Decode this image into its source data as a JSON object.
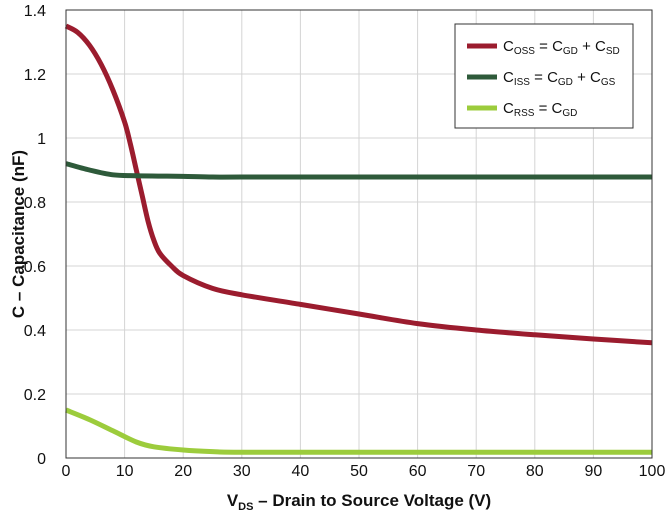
{
  "chart_data": {
    "type": "line",
    "xlabel": {
      "main": "V",
      "sub": "DS",
      "rest": " – Drain to Source Voltage (V)"
    },
    "ylabel": "C – Capacitance (nF)",
    "xlim": [
      0,
      100
    ],
    "ylim": [
      0,
      1.4
    ],
    "x_ticks": [
      0,
      10,
      20,
      30,
      40,
      50,
      60,
      70,
      80,
      90,
      100
    ],
    "y_ticks": [
      0,
      0.2,
      0.4,
      0.6,
      0.8,
      1,
      1.2,
      1.4
    ],
    "x_tick_labels": [
      "0",
      "10",
      "20",
      "30",
      "40",
      "50",
      "60",
      "70",
      "80",
      "90",
      "100"
    ],
    "y_tick_labels": [
      "0",
      "0.2",
      "0.4",
      "0.6",
      "0.8",
      "1",
      "1.2",
      "1.4"
    ],
    "grid": true,
    "legend_position": "top-right",
    "series": [
      {
        "name": "COSS = CGD + CSD",
        "color": "#9b1c2e",
        "legend": [
          [
            "C",
            ""
          ],
          [
            "OSS",
            "sub"
          ],
          [
            " = C",
            ""
          ],
          [
            "GD",
            "sub"
          ],
          [
            " + C",
            ""
          ],
          [
            "SD",
            "sub"
          ]
        ],
        "x": [
          0,
          2,
          4,
          6,
          8,
          10,
          11,
          12,
          13,
          14,
          15,
          16,
          18,
          20,
          25,
          30,
          40,
          50,
          60,
          70,
          80,
          90,
          100
        ],
        "y": [
          1.35,
          1.33,
          1.29,
          1.23,
          1.15,
          1.05,
          0.98,
          0.9,
          0.82,
          0.74,
          0.68,
          0.64,
          0.6,
          0.57,
          0.53,
          0.51,
          0.48,
          0.45,
          0.42,
          0.4,
          0.385,
          0.372,
          0.36
        ]
      },
      {
        "name": "CISS = CGD + CGS",
        "color": "#2e5a3a",
        "legend": [
          [
            "C",
            ""
          ],
          [
            "ISS",
            "sub"
          ],
          [
            " = C",
            ""
          ],
          [
            "GD",
            "sub"
          ],
          [
            " + C",
            ""
          ],
          [
            "GS",
            "sub"
          ]
        ],
        "x": [
          0,
          4,
          8,
          12,
          16,
          20,
          25,
          30,
          50,
          75,
          100
        ],
        "y": [
          0.92,
          0.9,
          0.885,
          0.882,
          0.881,
          0.88,
          0.878,
          0.878,
          0.878,
          0.878,
          0.878
        ]
      },
      {
        "name": "CRSS = CGD",
        "color": "#9ccc3c",
        "legend": [
          [
            "C",
            ""
          ],
          [
            "RSS",
            "sub"
          ],
          [
            " = C",
            ""
          ],
          [
            "GD",
            "sub"
          ]
        ],
        "x": [
          0,
          4,
          8,
          12,
          15,
          20,
          25,
          30,
          50,
          75,
          100
        ],
        "y": [
          0.15,
          0.12,
          0.085,
          0.05,
          0.035,
          0.025,
          0.02,
          0.018,
          0.018,
          0.018,
          0.018
        ]
      }
    ]
  }
}
